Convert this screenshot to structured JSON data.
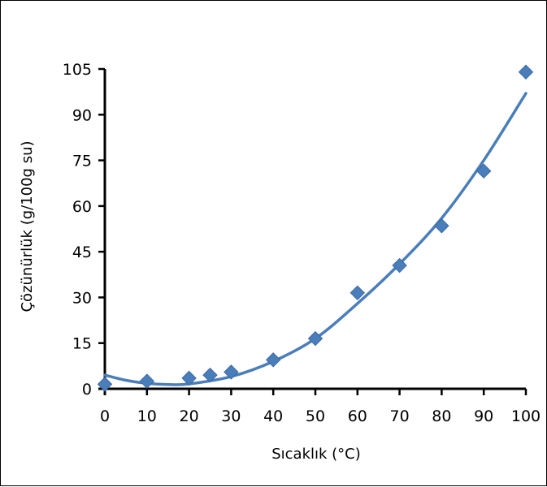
{
  "chart_data": {
    "type": "scatter",
    "title": "",
    "xlabel": "Sıcaklık (°C)",
    "ylabel": "Çözünürlük (g/100g su)",
    "xlim": [
      0,
      100
    ],
    "ylim": [
      0,
      105
    ],
    "xticks": [
      0,
      10,
      20,
      30,
      40,
      50,
      60,
      70,
      80,
      90,
      100
    ],
    "yticks": [
      0,
      15,
      30,
      45,
      60,
      75,
      90,
      105
    ],
    "grid": false,
    "legend": "none",
    "marker": "diamond",
    "color": "#4a7ebb",
    "points": [
      {
        "x": 0,
        "y": 1.5
      },
      {
        "x": 10,
        "y": 2.5
      },
      {
        "x": 20,
        "y": 3.5
      },
      {
        "x": 25,
        "y": 4.5
      },
      {
        "x": 30,
        "y": 5.5
      },
      {
        "x": 40,
        "y": 9.5
      },
      {
        "x": 50,
        "y": 16.5
      },
      {
        "x": 60,
        "y": 31.5
      },
      {
        "x": 70,
        "y": 40.5
      },
      {
        "x": 80,
        "y": 53.5
      },
      {
        "x": 90,
        "y": 71.5
      },
      {
        "x": 100,
        "y": 104
      }
    ],
    "trendline": {
      "type": "polynomial",
      "color": "#4a7ebb",
      "samples": [
        {
          "x": 0,
          "y": 4.5
        },
        {
          "x": 5,
          "y": 2.8
        },
        {
          "x": 10,
          "y": 1.8
        },
        {
          "x": 15,
          "y": 1.4
        },
        {
          "x": 20,
          "y": 1.6
        },
        {
          "x": 30,
          "y": 4.0
        },
        {
          "x": 40,
          "y": 9.0
        },
        {
          "x": 50,
          "y": 16.5
        },
        {
          "x": 60,
          "y": 28.0
        },
        {
          "x": 70,
          "y": 41.0
        },
        {
          "x": 80,
          "y": 56.0
        },
        {
          "x": 90,
          "y": 75.0
        },
        {
          "x": 100,
          "y": 97.0
        }
      ]
    }
  }
}
